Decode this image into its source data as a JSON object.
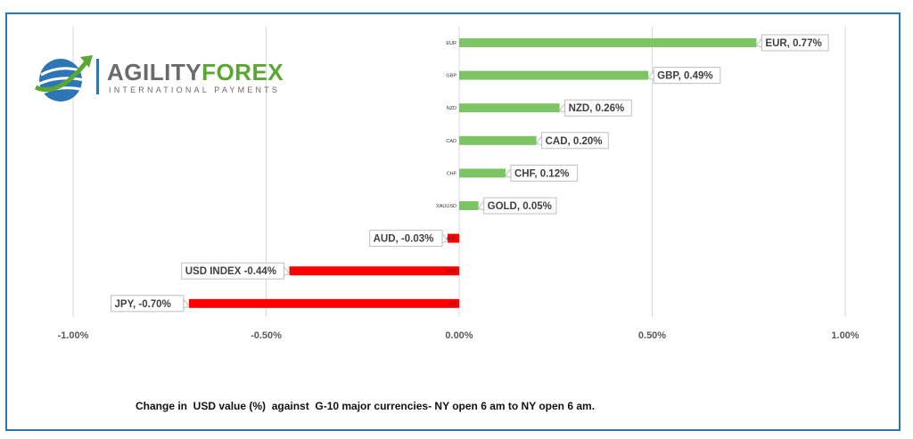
{
  "logo": {
    "brand_main": "AGILITY",
    "brand_accent": "FOREX",
    "subtitle": "INTERNATIONAL PAYMENTS"
  },
  "caption": "Change in  USD value (%)  against  G-10 major currencies- NY open 6 am to NY open 6 am.",
  "colors": {
    "positive": "#7dc464",
    "negative": "#ff0000",
    "frame": "#2e75b6",
    "gridline": "#d9d9d9"
  },
  "chart_data": {
    "type": "bar",
    "orientation": "horizontal",
    "categories": [
      "EUR",
      "GBP",
      "NZD",
      "CAD",
      "CHF",
      "XAUUSD",
      "AUD",
      "DXY",
      "JPY"
    ],
    "values": [
      0.77,
      0.49,
      0.26,
      0.2,
      0.12,
      0.05,
      -0.03,
      -0.44,
      -0.7
    ],
    "data_labels": [
      "EUR, 0.77%",
      "GBP, 0.49%",
      "NZD, 0.26%",
      "CAD, 0.20%",
      "CHF, 0.12%",
      "GOLD, 0.05%",
      "AUD, -0.03%",
      "USD INDEX -0.44%",
      "JPY, -0.70%"
    ],
    "xlim": [
      -1.0,
      1.0
    ],
    "xticks": [
      -1.0,
      -0.5,
      0.0,
      0.5,
      1.0
    ],
    "xtick_labels": [
      "-1.00%",
      "-0.50%",
      "0.00%",
      "0.50%",
      "1.00%"
    ],
    "grid": true,
    "title": "",
    "xlabel": "",
    "ylabel": ""
  }
}
